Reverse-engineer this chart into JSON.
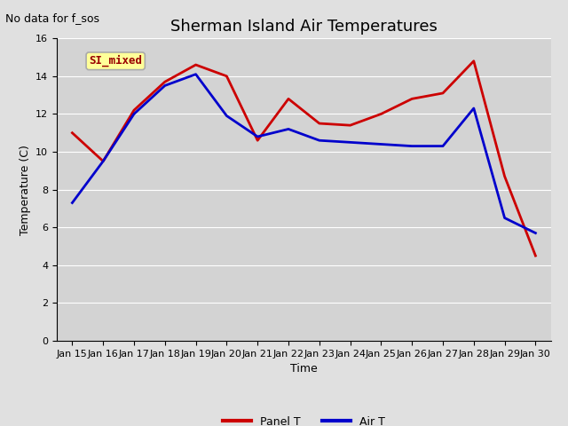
{
  "title": "Sherman Island Air Temperatures",
  "subtitle": "No data for f_sos",
  "xlabel": "Time",
  "ylabel": "Temperature (C)",
  "fig_bg_color": "#e0e0e0",
  "plot_bg_color": "#d3d3d3",
  "ylim": [
    0,
    16
  ],
  "yticks": [
    0,
    2,
    4,
    6,
    8,
    10,
    12,
    14,
    16
  ],
  "x_labels": [
    "Jan 15",
    "Jan 16",
    "Jan 17",
    "Jan 18",
    "Jan 19",
    "Jan 20",
    "Jan 21",
    "Jan 22",
    "Jan 23",
    "Jan 24",
    "Jan 25",
    "Jan 26",
    "Jan 27",
    "Jan 28",
    "Jan 29",
    "Jan 30"
  ],
  "x_positions": [
    15,
    16,
    17,
    18,
    19,
    20,
    21,
    22,
    23,
    24,
    25,
    26,
    27,
    28,
    29,
    30
  ],
  "panel_T_y": [
    11.0,
    9.5,
    12.2,
    13.7,
    14.6,
    14.0,
    10.6,
    12.8,
    11.5,
    11.4,
    12.0,
    12.8,
    13.1,
    14.8,
    8.7,
    4.5
  ],
  "air_T_y": [
    7.3,
    9.5,
    12.0,
    13.5,
    14.1,
    11.9,
    10.8,
    11.2,
    10.6,
    10.5,
    10.4,
    10.3,
    10.3,
    12.3,
    6.5,
    5.7
  ],
  "panel_T_color": "#cc0000",
  "air_T_color": "#0000cc",
  "legend_label_panel": "Panel T",
  "legend_label_air": "Air T",
  "si_mixed_text_color": "#990000",
  "si_mixed_bg": "#ffff99",
  "si_mixed_edge": "#aaaaaa",
  "line_width": 2.0,
  "title_fontsize": 13,
  "subtitle_fontsize": 9,
  "axis_label_fontsize": 9,
  "tick_fontsize": 8,
  "legend_fontsize": 9,
  "si_mixed_fontsize": 9,
  "xlim": [
    14.5,
    30.5
  ],
  "grid_color": "#ffffff",
  "grid_linewidth": 0.8
}
